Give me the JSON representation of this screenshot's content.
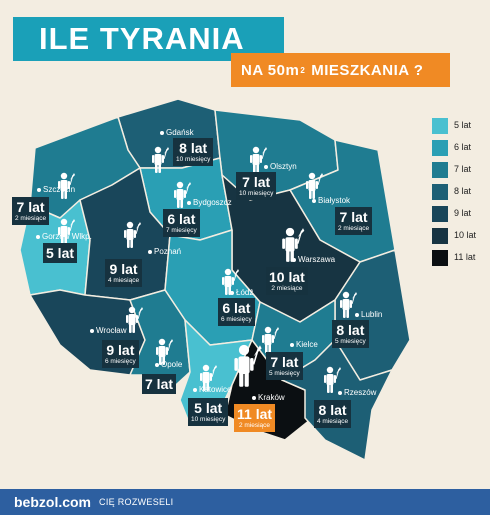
{
  "title": "ILE TYRANIA",
  "subtitle_a": "NA 50m",
  "subtitle_sup": "2",
  "subtitle_b": "MIESZKANIA ?",
  "colors": {
    "5": "#49c0d0",
    "6": "#2a9fb4",
    "7": "#1f7c91",
    "8": "#1d5f75",
    "9": "#19465a",
    "10": "#173442",
    "11": "#0b0f12",
    "background": "#f3ede1",
    "orange": "#f08a24",
    "footer": "#2d5fa0"
  },
  "legend": [
    {
      "label": "5 lat",
      "level": "5"
    },
    {
      "label": "6 lat",
      "level": "6"
    },
    {
      "label": "7 lat",
      "level": "7"
    },
    {
      "label": "8 lat",
      "level": "8"
    },
    {
      "label": "9 lat",
      "level": "9"
    },
    {
      "label": "10 lat",
      "level": "10"
    },
    {
      "label": "11 lat",
      "level": "11"
    }
  ],
  "regions": [
    {
      "city": "Gdańsk",
      "years": "8 lat",
      "months": "10 miesięcy",
      "level": "8"
    },
    {
      "city": "Olsztyn",
      "years": "7 lat",
      "months": "10 miesięcy",
      "level": "7"
    },
    {
      "city": "Szczecin",
      "years": "7 lat",
      "months": "2 miesiące",
      "level": "7"
    },
    {
      "city": "Bydgoszcz",
      "years": "6 lat",
      "months": "7 miesięcy",
      "level": "6"
    },
    {
      "city": "Białystok",
      "years": "7 lat",
      "months": "2 miesiące",
      "level": "7"
    },
    {
      "city": "Gorzów Wlkp.",
      "years": "5 lat",
      "months": "",
      "level": "5"
    },
    {
      "city": "Poznań",
      "years": "9 lat",
      "months": "4 miesiące",
      "level": "9"
    },
    {
      "city": "Warszawa",
      "years": "10 lat",
      "months": "2 miesiące",
      "level": "10"
    },
    {
      "city": "Łódź",
      "years": "6 lat",
      "months": "6 miesięcy",
      "level": "6"
    },
    {
      "city": "Lublin",
      "years": "8 lat",
      "months": "5 miesięcy",
      "level": "8"
    },
    {
      "city": "Wrocław",
      "years": "9 lat",
      "months": "6 miesięcy",
      "level": "9"
    },
    {
      "city": "Kielce",
      "years": "7 lat",
      "months": "5 miesięcy",
      "level": "7"
    },
    {
      "city": "Opole",
      "years": "7 lat",
      "months": "",
      "level": "7"
    },
    {
      "city": "Katowice",
      "years": "5 lat",
      "months": "10 miesięcy",
      "level": "5"
    },
    {
      "city": "Kraków",
      "years": "11 lat",
      "months": "2 miesiące",
      "level": "11"
    },
    {
      "city": "Rzeszów",
      "years": "8 lat",
      "months": "4 miesiące",
      "level": "8"
    }
  ],
  "footer": {
    "brand": "bebzol.com",
    "tagline": "CIĘ ROZWESELI"
  }
}
